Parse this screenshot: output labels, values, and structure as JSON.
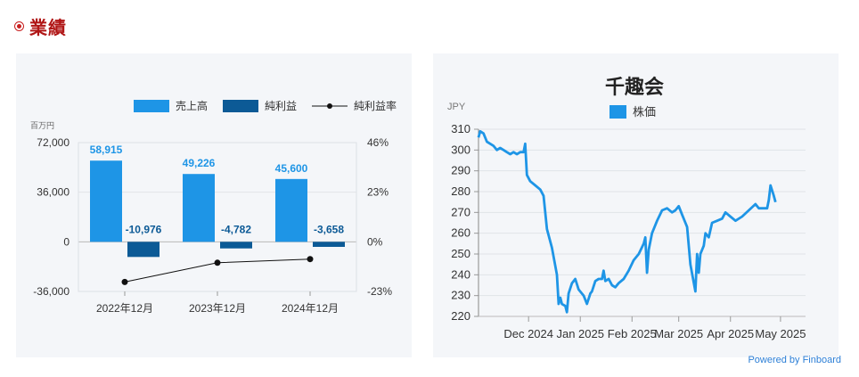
{
  "section": {
    "title": "業績"
  },
  "credit": "Powered by Finboard",
  "chart_data": [
    {
      "type": "bar",
      "unit_label": "百万円",
      "categories": [
        "2022年12月",
        "2023年12月",
        "2024年12月"
      ],
      "series": [
        {
          "name": "売上高",
          "kind": "bar",
          "axis": "left",
          "color": "#1e95e6",
          "values": [
            58915,
            49226,
            45600
          ],
          "labels": [
            "58,915",
            "49,226",
            "45,600"
          ]
        },
        {
          "name": "純利益",
          "kind": "bar",
          "axis": "left",
          "color": "#0c5a96",
          "values": [
            -10976,
            -4782,
            -3658
          ],
          "labels": [
            "-10,976",
            "-4,782",
            "-3,658"
          ]
        },
        {
          "name": "純利益率",
          "kind": "line",
          "axis": "right",
          "color": "#111111",
          "values": [
            -18.6,
            -9.7,
            -8.0
          ]
        }
      ],
      "left_axis": {
        "ticks": [
          72000,
          36000,
          0,
          -36000
        ],
        "tick_labels": [
          "72,000",
          "36,000",
          "0",
          "-36,000"
        ],
        "range": [
          -36000,
          72000
        ]
      },
      "right_axis": {
        "ticks": [
          46,
          23,
          0,
          -23
        ],
        "tick_labels": [
          "46%",
          "23%",
          "0%",
          "-23%"
        ],
        "range": [
          -23,
          46
        ]
      },
      "legend_position": "top-right"
    },
    {
      "type": "line",
      "title": "千趣会",
      "ylabel": "JPY",
      "series": [
        {
          "name": "株価",
          "color": "#1e95e6"
        }
      ],
      "ylim": [
        220,
        310
      ],
      "yticks": [
        220,
        230,
        240,
        250,
        260,
        270,
        280,
        290,
        300,
        310
      ],
      "xtick_labels": [
        "Dec 2024",
        "Jan 2025",
        "Feb 2025",
        "Mar 2025",
        "Apr 2025",
        "May 2025"
      ],
      "xtick_dates": [
        "2024-12-01",
        "2025-01-01",
        "2025-02-01",
        "2025-03-01",
        "2025-04-01",
        "2025-05-01"
      ],
      "x_range": [
        "2024-11-01",
        "2025-05-16"
      ],
      "points": [
        [
          "2024-11-01",
          306
        ],
        [
          "2024-11-02",
          309
        ],
        [
          "2024-11-04",
          308
        ],
        [
          "2024-11-06",
          304
        ],
        [
          "2024-11-08",
          303
        ],
        [
          "2024-11-10",
          302
        ],
        [
          "2024-11-12",
          300
        ],
        [
          "2024-11-14",
          301
        ],
        [
          "2024-11-16",
          300
        ],
        [
          "2024-11-18",
          299
        ],
        [
          "2024-11-20",
          298
        ],
        [
          "2024-11-22",
          299
        ],
        [
          "2024-11-24",
          298
        ],
        [
          "2024-11-26",
          299
        ],
        [
          "2024-11-28",
          299
        ],
        [
          "2024-11-29",
          303
        ],
        [
          "2024-11-30",
          288
        ],
        [
          "2024-12-02",
          285
        ],
        [
          "2024-12-05",
          283
        ],
        [
          "2024-12-08",
          281
        ],
        [
          "2024-12-10",
          278
        ],
        [
          "2024-12-12",
          262
        ],
        [
          "2024-12-15",
          253
        ],
        [
          "2024-12-18",
          240
        ],
        [
          "2024-12-19",
          226
        ],
        [
          "2024-12-20",
          229
        ],
        [
          "2024-12-21",
          226
        ],
        [
          "2024-12-23",
          225
        ],
        [
          "2024-12-24",
          222
        ],
        [
          "2024-12-25",
          231
        ],
        [
          "2024-12-27",
          236
        ],
        [
          "2024-12-29",
          238
        ],
        [
          "2024-12-31",
          233
        ],
        [
          "2025-01-03",
          230
        ],
        [
          "2025-01-05",
          226
        ],
        [
          "2025-01-07",
          231
        ],
        [
          "2025-01-08",
          232
        ],
        [
          "2025-01-10",
          237
        ],
        [
          "2025-01-12",
          238
        ],
        [
          "2025-01-14",
          238
        ],
        [
          "2025-01-15",
          242
        ],
        [
          "2025-01-16",
          237
        ],
        [
          "2025-01-18",
          238
        ],
        [
          "2025-01-20",
          235
        ],
        [
          "2025-01-22",
          234
        ],
        [
          "2025-01-24",
          236
        ],
        [
          "2025-01-27",
          238
        ],
        [
          "2025-01-30",
          242
        ],
        [
          "2025-02-02",
          247
        ],
        [
          "2025-02-05",
          250
        ],
        [
          "2025-02-08",
          255
        ],
        [
          "2025-02-09",
          258
        ],
        [
          "2025-02-10",
          241
        ],
        [
          "2025-02-11",
          252
        ],
        [
          "2025-02-13",
          260
        ],
        [
          "2025-02-16",
          266
        ],
        [
          "2025-02-19",
          271
        ],
        [
          "2025-02-22",
          272
        ],
        [
          "2025-02-25",
          270
        ],
        [
          "2025-02-27",
          271
        ],
        [
          "2025-03-01",
          273
        ],
        [
          "2025-03-03",
          269
        ],
        [
          "2025-03-05",
          265
        ],
        [
          "2025-03-06",
          263
        ],
        [
          "2025-03-08",
          245
        ],
        [
          "2025-03-11",
          232
        ],
        [
          "2025-03-12",
          250
        ],
        [
          "2025-03-13",
          241
        ],
        [
          "2025-03-14",
          250
        ],
        [
          "2025-03-16",
          254
        ],
        [
          "2025-03-17",
          260
        ],
        [
          "2025-03-19",
          258
        ],
        [
          "2025-03-21",
          265
        ],
        [
          "2025-03-24",
          266
        ],
        [
          "2025-03-27",
          267
        ],
        [
          "2025-03-29",
          270
        ],
        [
          "2025-04-01",
          268
        ],
        [
          "2025-04-04",
          266
        ],
        [
          "2025-04-08",
          268
        ],
        [
          "2025-04-12",
          271
        ],
        [
          "2025-04-16",
          274
        ],
        [
          "2025-04-18",
          272
        ],
        [
          "2025-04-21",
          272
        ],
        [
          "2025-04-23",
          272
        ],
        [
          "2025-04-24",
          276
        ],
        [
          "2025-04-25",
          283
        ],
        [
          "2025-04-27",
          278
        ],
        [
          "2025-04-28",
          275
        ]
      ]
    }
  ]
}
